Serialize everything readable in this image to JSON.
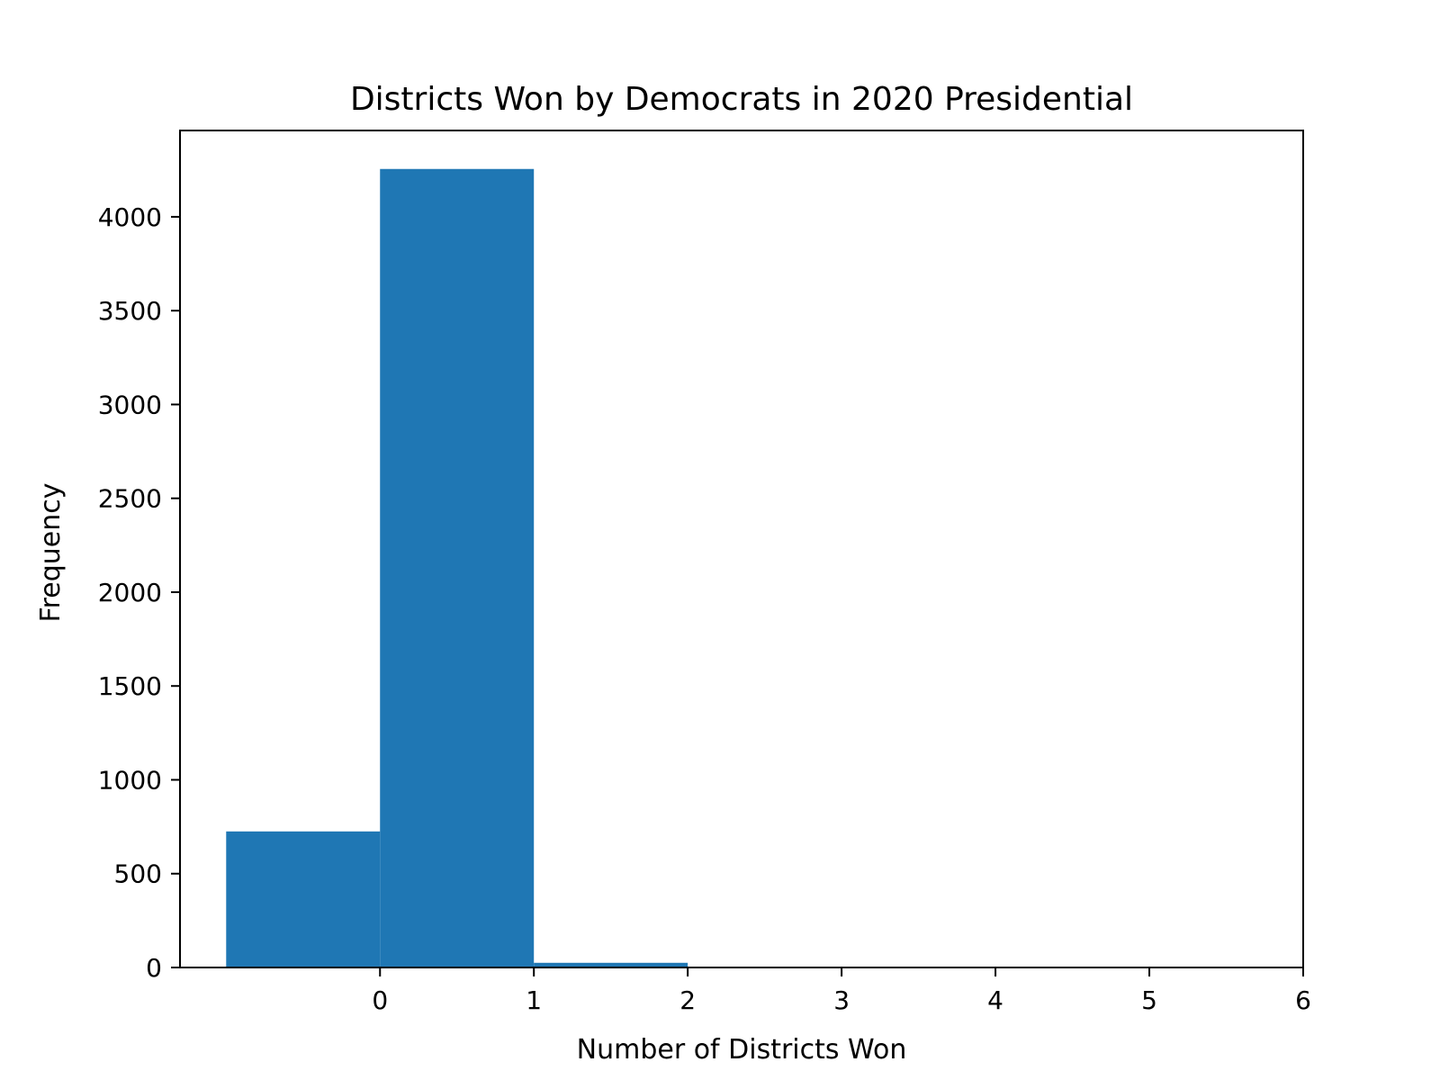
{
  "chart_data": {
    "type": "bar",
    "title": "Districts Won by Democrats in 2020 Presidential",
    "xlabel": "Number of Districts Won",
    "ylabel": "Frequency",
    "xlim": [
      -1.3,
      6
    ],
    "ylim": [
      0,
      4460
    ],
    "xticks": [
      0,
      1,
      2,
      3,
      4,
      5,
      6
    ],
    "yticks": [
      0,
      500,
      1000,
      1500,
      2000,
      2500,
      3000,
      3500,
      4000
    ],
    "bins": [
      {
        "x0": -1,
        "x1": 0,
        "value": 725
      },
      {
        "x0": 0,
        "x1": 1,
        "value": 4255
      },
      {
        "x0": 1,
        "x1": 2,
        "value": 25
      }
    ],
    "grid": false,
    "legend": "none",
    "colors": {
      "bar": "#1f77b4",
      "axis": "#000000",
      "background": "#ffffff"
    }
  }
}
